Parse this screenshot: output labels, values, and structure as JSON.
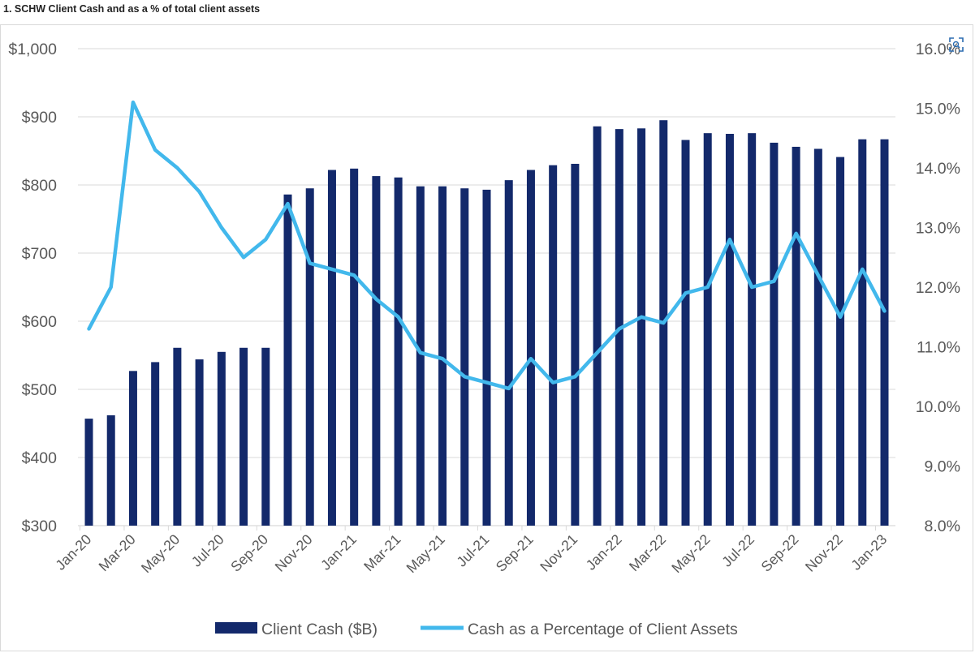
{
  "header": {
    "title": "1. SCHW Client Cash and as a % of total client assets"
  },
  "colors": {
    "bar": "#13296b",
    "line": "#42b8ec",
    "grid": "#d9d9d9",
    "text": "#595959"
  },
  "icons": {
    "expand": "expand-icon"
  },
  "chart_data": {
    "type": "bar",
    "title": "",
    "categories": [
      "Jan-20",
      "Feb-20",
      "Mar-20",
      "Apr-20",
      "May-20",
      "Jun-20",
      "Jul-20",
      "Aug-20",
      "Sep-20",
      "Oct-20",
      "Nov-20",
      "Dec-20",
      "Jan-21",
      "Feb-21",
      "Mar-21",
      "Apr-21",
      "May-21",
      "Jun-21",
      "Jul-21",
      "Aug-21",
      "Sep-21",
      "Oct-21",
      "Nov-21",
      "Dec-21",
      "Jan-22",
      "Feb-22",
      "Mar-22",
      "Apr-22",
      "May-22",
      "Jun-22",
      "Jul-22",
      "Aug-22",
      "Sep-22",
      "Oct-22",
      "Nov-22",
      "Dec-22",
      "Jan-23"
    ],
    "x_tick_labels": [
      "Jan-20",
      "Mar-20",
      "May-20",
      "Jul-20",
      "Sep-20",
      "Nov-20",
      "Jan-21",
      "Mar-21",
      "May-21",
      "Jul-21",
      "Sep-21",
      "Nov-21",
      "Jan-22",
      "Mar-22",
      "May-22",
      "Jul-22",
      "Sep-22",
      "Nov-22",
      "Jan-23"
    ],
    "series": [
      {
        "name": "Client Cash ($B)",
        "type": "bar",
        "axis": "left",
        "values": [
          457,
          462,
          527,
          540,
          561,
          544,
          555,
          561,
          561,
          786,
          795,
          822,
          824,
          813,
          811,
          798,
          798,
          795,
          793,
          807,
          822,
          829,
          831,
          886,
          882,
          883,
          895,
          866,
          876,
          875,
          876,
          862,
          856,
          853,
          841,
          867,
          867
        ]
      },
      {
        "name": "Cash as a Percentage of Client Assets",
        "type": "line",
        "axis": "right",
        "values": [
          11.3,
          12.0,
          15.1,
          14.3,
          14.0,
          13.6,
          13.0,
          12.5,
          12.8,
          13.4,
          12.4,
          12.3,
          12.2,
          11.8,
          11.5,
          10.9,
          10.8,
          10.5,
          10.4,
          10.3,
          10.8,
          10.4,
          10.5,
          10.9,
          11.3,
          11.5,
          11.4,
          11.9,
          12.0,
          12.8,
          12.0,
          12.1,
          12.9,
          12.2,
          11.5,
          12.3,
          11.6
        ]
      }
    ],
    "y_left": {
      "ylim": [
        300,
        1000
      ],
      "ticks": [
        300,
        400,
        500,
        600,
        700,
        800,
        900,
        1000
      ],
      "tick_labels": [
        "$300",
        "$400",
        "$500",
        "$600",
        "$700",
        "$800",
        "$900",
        "$1,000"
      ]
    },
    "y_right": {
      "ylim": [
        8.0,
        16.0
      ],
      "ticks": [
        8,
        9,
        10,
        11,
        12,
        13,
        14,
        15,
        16
      ],
      "tick_labels": [
        "8.0%",
        "9.0%",
        "10.0%",
        "11.0%",
        "12.0%",
        "13.0%",
        "14.0%",
        "15.0%",
        "16.0%"
      ]
    },
    "xlabel": "",
    "ylabel": "",
    "grid": true,
    "legend": "bottom"
  }
}
